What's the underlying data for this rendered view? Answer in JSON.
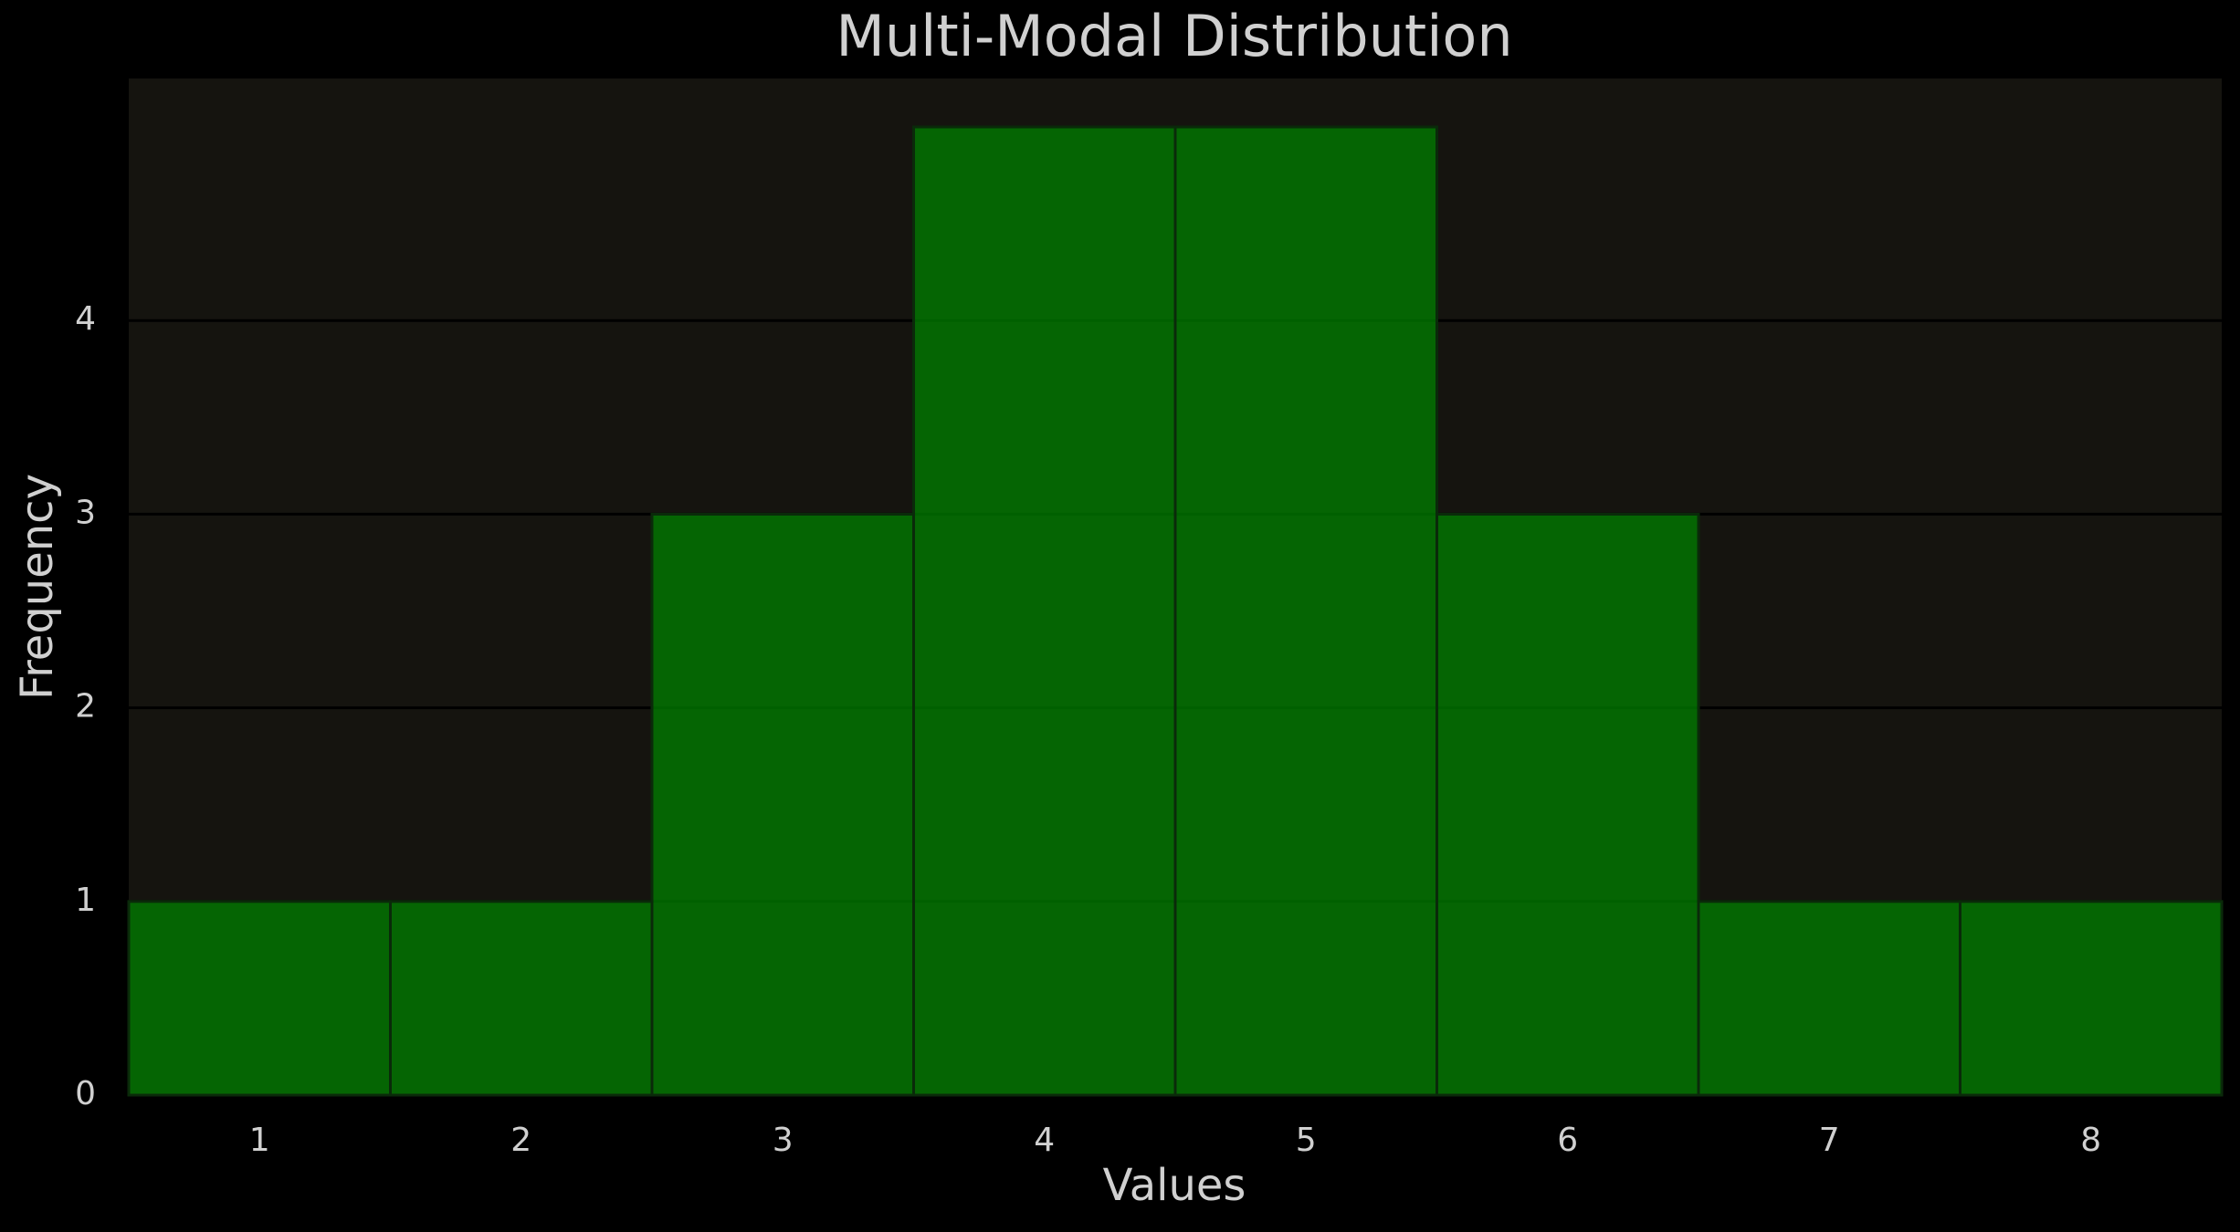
{
  "chart_data": {
    "type": "histogram",
    "title": "Multi-Modal Distribution",
    "xlabel": "Values",
    "ylabel": "Frequency",
    "bins": [
      0.5,
      1.5,
      2.5,
      3.5,
      4.5,
      5.5,
      6.5,
      7.5,
      8.5
    ],
    "values": [
      1,
      1,
      3,
      5,
      5,
      3,
      1,
      1
    ],
    "color": "#008000",
    "xlim": [
      0.5,
      8.5
    ],
    "xticks": [
      1,
      2,
      3,
      4,
      5,
      6,
      7,
      8
    ],
    "ylim": [
      0,
      5.25
    ],
    "yticks": [
      0,
      1,
      2,
      3,
      4
    ],
    "grid": true
  }
}
